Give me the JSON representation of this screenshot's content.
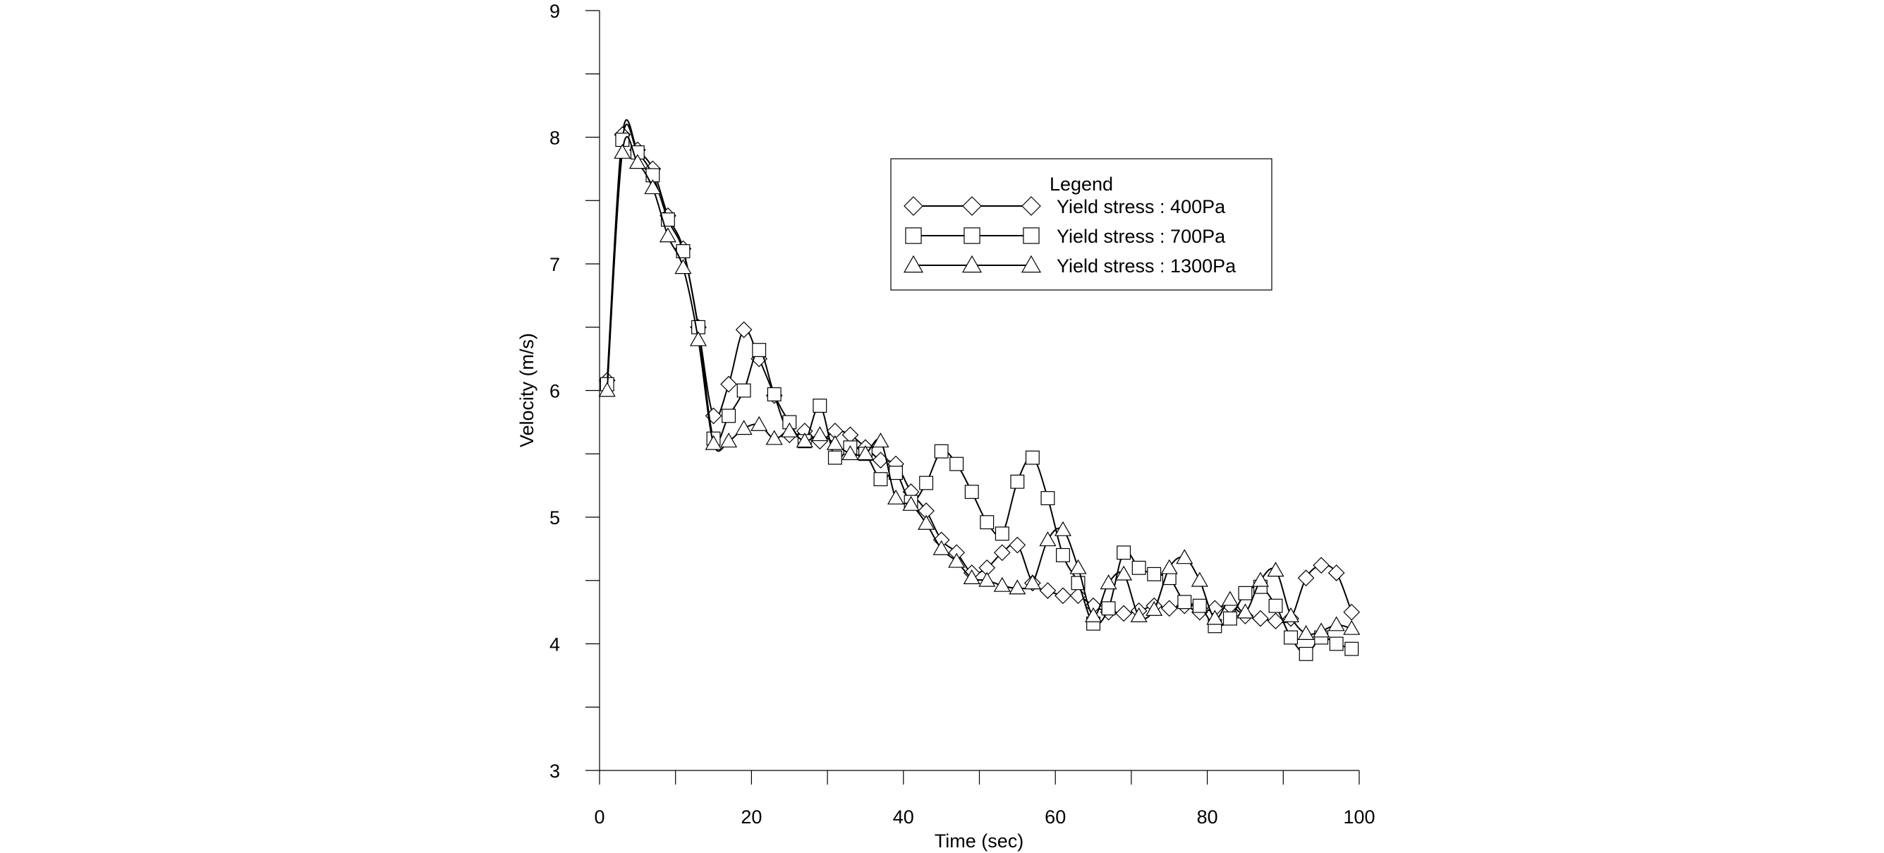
{
  "chart_data": {
    "type": "line",
    "title": "",
    "xlabel": "Time (sec)",
    "ylabel": "Velocity (m/s)",
    "xlim": [
      0,
      100
    ],
    "ylim": [
      3,
      9
    ],
    "xticks": [
      0,
      20,
      40,
      60,
      80,
      100
    ],
    "yticks": [
      3,
      4,
      5,
      6,
      7,
      8,
      9
    ],
    "grid": false,
    "legend": {
      "title": "Legend",
      "position": "upper-center"
    },
    "series": [
      {
        "name": "Yield stress : 400Pa",
        "marker": "diamond",
        "x": [
          1,
          3,
          5,
          7,
          9,
          11,
          13,
          15,
          17,
          19,
          21,
          23,
          25,
          27,
          29,
          31,
          33,
          35,
          37,
          39,
          41,
          43,
          45,
          47,
          49,
          51,
          53,
          55,
          57,
          59,
          61,
          63,
          65,
          67,
          69,
          71,
          73,
          75,
          77,
          79,
          81,
          83,
          85,
          87,
          89,
          91,
          93,
          95,
          97,
          99
        ],
        "y": [
          6.08,
          8.02,
          7.9,
          7.75,
          7.38,
          7.12,
          6.5,
          5.8,
          6.05,
          6.48,
          6.25,
          5.96,
          5.65,
          5.68,
          5.6,
          5.68,
          5.65,
          5.55,
          5.45,
          5.42,
          5.2,
          5.05,
          4.82,
          4.72,
          4.56,
          4.6,
          4.72,
          4.78,
          4.48,
          4.42,
          4.38,
          4.38,
          4.3,
          4.25,
          4.24,
          4.26,
          4.3,
          4.28,
          4.3,
          4.25,
          4.28,
          4.3,
          4.22,
          4.2,
          4.18,
          4.2,
          4.52,
          4.62,
          4.56,
          4.25
        ]
      },
      {
        "name": "Yield stress : 700Pa",
        "marker": "square",
        "x": [
          1,
          3,
          5,
          7,
          9,
          11,
          13,
          15,
          17,
          19,
          21,
          23,
          25,
          27,
          29,
          31,
          33,
          35,
          37,
          39,
          41,
          43,
          45,
          47,
          49,
          51,
          53,
          55,
          57,
          59,
          61,
          63,
          65,
          67,
          69,
          71,
          73,
          75,
          77,
          79,
          81,
          83,
          85,
          87,
          89,
          91,
          93,
          95,
          97,
          99
        ],
        "y": [
          6.05,
          7.98,
          7.88,
          7.7,
          7.35,
          7.1,
          6.5,
          5.62,
          5.8,
          6.0,
          6.32,
          5.97,
          5.75,
          5.6,
          5.88,
          5.47,
          5.55,
          5.5,
          5.3,
          5.35,
          5.12,
          5.27,
          5.52,
          5.42,
          5.2,
          4.96,
          4.87,
          5.28,
          5.47,
          5.15,
          4.7,
          4.48,
          4.16,
          4.28,
          4.72,
          4.6,
          4.55,
          4.52,
          4.33,
          4.3,
          4.14,
          4.2,
          4.4,
          4.45,
          4.3,
          4.05,
          3.92,
          4.05,
          4.0,
          3.96
        ]
      },
      {
        "name": "Yield stress : 1300Pa",
        "marker": "triangle",
        "x": [
          1,
          3,
          5,
          7,
          9,
          11,
          13,
          15,
          17,
          19,
          21,
          23,
          25,
          27,
          29,
          31,
          33,
          35,
          37,
          39,
          41,
          43,
          45,
          47,
          49,
          51,
          53,
          55,
          57,
          59,
          61,
          63,
          65,
          67,
          69,
          71,
          73,
          75,
          77,
          79,
          81,
          83,
          85,
          87,
          89,
          91,
          93,
          95,
          97,
          99
        ],
        "y": [
          6.0,
          7.88,
          7.8,
          7.6,
          7.22,
          6.97,
          6.4,
          5.58,
          5.6,
          5.7,
          5.73,
          5.62,
          5.68,
          5.6,
          5.65,
          5.58,
          5.5,
          5.5,
          5.6,
          5.15,
          5.1,
          4.95,
          4.75,
          4.65,
          4.52,
          4.5,
          4.46,
          4.44,
          4.48,
          4.82,
          4.9,
          4.6,
          4.22,
          4.48,
          4.55,
          4.22,
          4.27,
          4.6,
          4.68,
          4.5,
          4.2,
          4.35,
          4.25,
          4.5,
          4.58,
          4.22,
          4.08,
          4.1,
          4.15,
          4.12
        ]
      }
    ]
  }
}
